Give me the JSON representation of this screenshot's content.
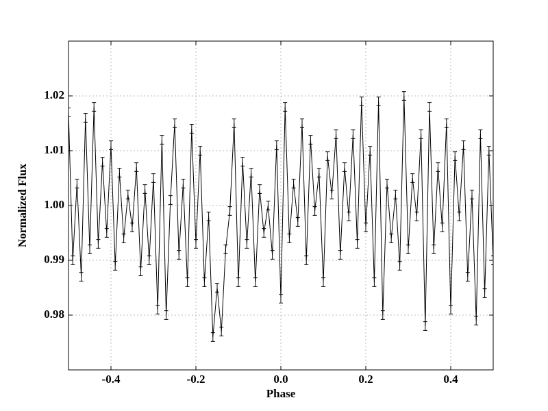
{
  "chart_data": {
    "type": "errorbar-line",
    "xlabel": "Phase",
    "ylabel": "Normalized Flux",
    "x": [
      -0.5,
      -0.49,
      -0.48,
      -0.47,
      -0.46,
      -0.45,
      -0.44,
      -0.43,
      -0.42,
      -0.41,
      -0.4,
      -0.39,
      -0.38,
      -0.37,
      -0.36,
      -0.35,
      -0.34,
      -0.33,
      -0.32,
      -0.31,
      -0.3,
      -0.29,
      -0.28,
      -0.27,
      -0.26,
      -0.25,
      -0.24,
      -0.23,
      -0.22,
      -0.21,
      -0.2,
      -0.19,
      -0.18,
      -0.17,
      -0.16,
      -0.15,
      -0.14,
      -0.13,
      -0.12,
      -0.11,
      -0.1,
      -0.09,
      -0.08,
      -0.07,
      -0.06,
      -0.05,
      -0.04,
      -0.03,
      -0.02,
      -0.01,
      0,
      0.01,
      0.02,
      0.03,
      0.04,
      0.05,
      0.06,
      0.07,
      0.08,
      0.09,
      0.1,
      0.11,
      0.12,
      0.13,
      0.14,
      0.15,
      0.16,
      0.17,
      0.18,
      0.19,
      0.2,
      0.21,
      0.22,
      0.23,
      0.24,
      0.25,
      0.26,
      0.27,
      0.28,
      0.29,
      0.3,
      0.31,
      0.32,
      0.33,
      0.34,
      0.35,
      0.36,
      0.37,
      0.38,
      0.39,
      0.4,
      0.41,
      0.42,
      0.43,
      0.44,
      0.45,
      0.46,
      0.47,
      0.48,
      0.49,
      0.5
    ],
    "values": [
      1.017,
      0.99,
      1.004,
      0.987,
      1.016,
      0.992,
      1.018,
      0.993,
      1.008,
      0.995,
      1.011,
      0.989,
      1.006,
      0.994,
      1.002,
      0.996,
      1.007,
      0.988,
      1.003,
      0.99,
      1.005,
      0.981,
      1.012,
      0.98,
      1.001,
      1.015,
      0.991,
      1.004,
      0.986,
      1.014,
      0.993,
      1.01,
      0.986,
      0.998,
      0.976,
      0.985,
      0.977,
      0.992,
      0.999,
      1.015,
      0.986,
      1.008,
      0.993,
      1.006,
      0.986,
      1.003,
      0.995,
      1.0,
      0.991,
      1.011,
      0.983,
      1.018,
      0.994,
      1.004,
      0.997,
      1.015,
      0.99,
      1.012,
      0.999,
      1.006,
      0.986,
      1.009,
      1.002,
      1.013,
      0.991,
      1.007,
      0.998,
      1.013,
      0.993,
      1.019,
      0.996,
      1.01,
      0.986,
      1.019,
      0.98,
      1.004,
      0.994,
      1.002,
      0.989,
      1.02,
      0.992,
      1.005,
      0.998,
      1.013,
      0.978,
      1.018,
      0.992,
      1.007,
      0.996,
      1.015,
      0.981,
      1.009,
      0.998,
      1.011,
      0.987,
      1.002,
      0.979,
      1.013,
      0.984,
      1.01,
      0.99
    ],
    "errors": [
      0.0008,
      0.0008,
      0.0008,
      0.0008,
      0.0008,
      0.0008,
      0.0008,
      0.0008,
      0.0008,
      0.0008,
      0.0008,
      0.0008,
      0.0008,
      0.0008,
      0.0008,
      0.0008,
      0.0008,
      0.0008,
      0.0008,
      0.0008,
      0.0008,
      0.0008,
      0.0008,
      0.0008,
      0.0008,
      0.0008,
      0.0008,
      0.0008,
      0.0008,
      0.0008,
      0.0008,
      0.0008,
      0.0008,
      0.0008,
      0.0008,
      0.0008,
      0.0008,
      0.0008,
      0.0008,
      0.0008,
      0.0008,
      0.0008,
      0.0008,
      0.0008,
      0.0008,
      0.0008,
      0.0008,
      0.0008,
      0.0008,
      0.0008,
      0.0008,
      0.0008,
      0.0008,
      0.0008,
      0.0008,
      0.0008,
      0.0008,
      0.0008,
      0.0008,
      0.0008,
      0.0008,
      0.0008,
      0.0008,
      0.0008,
      0.0008,
      0.0008,
      0.0008,
      0.0008,
      0.0008,
      0.0008,
      0.0008,
      0.0008,
      0.0008,
      0.0008,
      0.0008,
      0.0008,
      0.0008,
      0.0008,
      0.0008,
      0.0008,
      0.0008,
      0.0008,
      0.0008,
      0.0008,
      0.0008,
      0.0008,
      0.0008,
      0.0008,
      0.0008,
      0.0008,
      0.0008,
      0.0008,
      0.0008,
      0.0008,
      0.0008,
      0.0008,
      0.0008,
      0.0008,
      0.0008,
      0.0008,
      0.0008
    ],
    "color": "#000000",
    "xlim": [
      -0.5,
      0.5
    ],
    "xticks": [
      -0.4,
      -0.2,
      {
        "value": 0,
        "label": "0.0"
      },
      0.2,
      0.4
    ],
    "ylim": [
      0.97,
      1.03
    ],
    "yticks": [
      0.98,
      0.99,
      {
        "value": 1,
        "label": "1.00"
      },
      1.01,
      1.02
    ],
    "grid": true
  }
}
